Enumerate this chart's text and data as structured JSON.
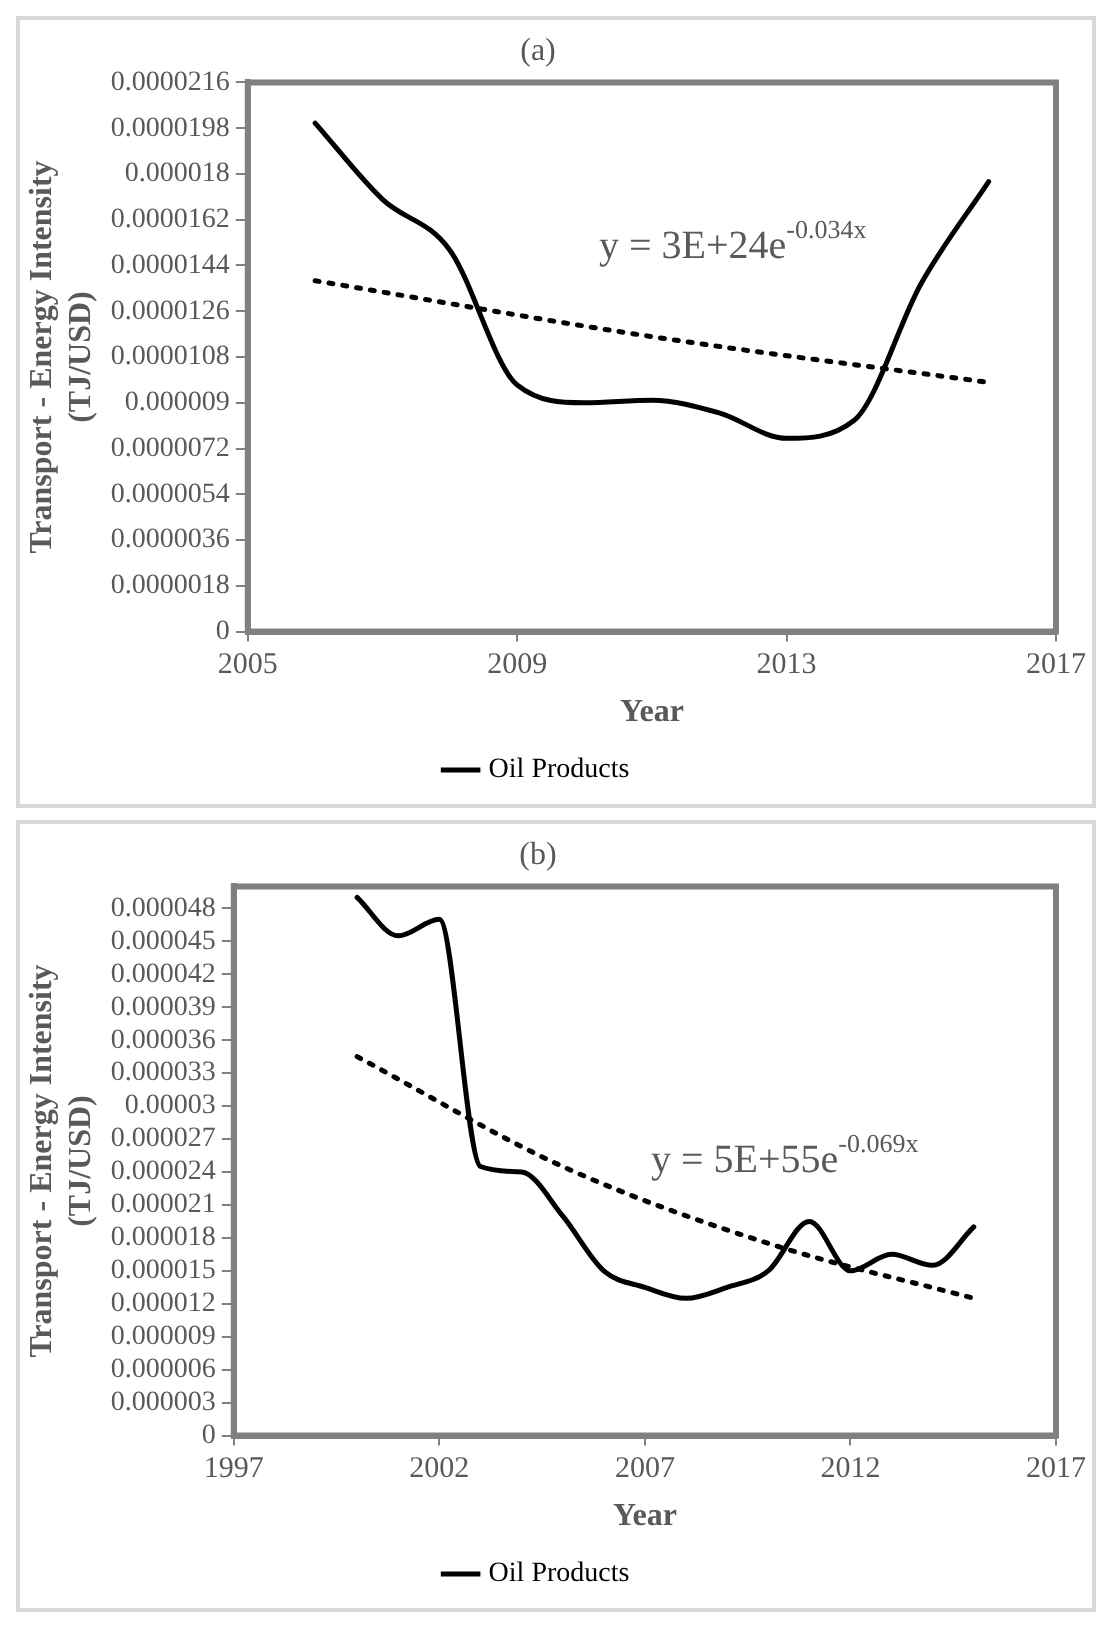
{
  "chart_data": [
    {
      "type": "line",
      "title": "(a)",
      "xlabel": "Year",
      "ylabel": "Transport - Energy Intensity (TJ/USD)",
      "marker": "none",
      "legend": "bottom",
      "xlim": [
        2005,
        2017
      ],
      "xticks": [
        2005,
        2009,
        2013,
        2017
      ],
      "ylim": [
        0,
        2.16e-05
      ],
      "yticks": [
        0,
        {
          "value": 1.8e-06,
          "label": "0.0000018"
        },
        {
          "value": 3.6e-06,
          "label": "0.0000036"
        },
        {
          "value": 5.4e-06,
          "label": "0.0000054"
        },
        {
          "value": 7.2e-06,
          "label": "0.0000072"
        },
        {
          "value": 9e-06,
          "label": "0.000009"
        },
        {
          "value": 1.08e-05,
          "label": "0.0000108"
        },
        {
          "value": 1.26e-05,
          "label": "0.0000126"
        },
        {
          "value": 1.44e-05,
          "label": "0.0000144"
        },
        {
          "value": 1.62e-05,
          "label": "0.0000162"
        },
        {
          "value": 1.8e-05,
          "label": "0.000018"
        },
        {
          "value": 1.98e-05,
          "label": "0.0000198"
        },
        {
          "value": 2.16e-05,
          "label": "0.0000216"
        }
      ],
      "series": [
        {
          "name": "Oil Products",
          "color": "#000000",
          "line_style": "solid",
          "x": [
            2006,
            2007,
            2008,
            2009,
            2010,
            2011,
            2012,
            2013,
            2014,
            2015,
            2016
          ],
          "values": [
            2e-05,
            1.7e-05,
            1.5e-05,
            9.7e-06,
            9e-06,
            9.1e-06,
            8.6e-06,
            7.6e-06,
            8.3e-06,
            1.37e-05,
            1.77e-05
          ]
        },
        {
          "type": "line",
          "color": "#000000",
          "line_style": "dotted",
          "x": [
            2006,
            2011,
            2016
          ],
          "values": [
            1.38e-05,
            1.16e-05,
            9.8e-06
          ]
        }
      ],
      "annotations": [
        "y = 3E+24e$^{-0.034x}$"
      ]
    },
    {
      "type": "line",
      "title": "(b)",
      "xlabel": "Year",
      "ylabel": "Transport - Energy Intensity (TJ/USD)",
      "marker": "none",
      "legend": "bottom",
      "xlim": [
        1997,
        2017
      ],
      "xticks": [
        1997,
        2002,
        2007,
        2012,
        2017
      ],
      "ylim": [
        0,
        5e-05
      ],
      "yticks": [
        0,
        {
          "value": 3e-06,
          "label": "0.000003"
        },
        {
          "value": 6e-06,
          "label": "0.000006"
        },
        {
          "value": 9e-06,
          "label": "0.000009"
        },
        {
          "value": 1.2e-05,
          "label": "0.000012"
        },
        {
          "value": 1.5e-05,
          "label": "0.000015"
        },
        {
          "value": 1.8e-05,
          "label": "0.000018"
        },
        {
          "value": 2.1e-05,
          "label": "0.000021"
        },
        {
          "value": 2.4e-05,
          "label": "0.000024"
        },
        {
          "value": 2.7e-05,
          "label": "0.000027"
        },
        {
          "value": 3e-05,
          "label": "0.00003"
        },
        {
          "value": 3.3e-05,
          "label": "0.000033"
        },
        {
          "value": 3.6e-05,
          "label": "0.000036"
        },
        {
          "value": 3.9e-05,
          "label": "0.000039"
        },
        {
          "value": 4.2e-05,
          "label": "0.000042"
        },
        {
          "value": 4.5e-05,
          "label": "0.000045"
        },
        {
          "value": 4.8e-05,
          "label": "0.000048"
        }
      ],
      "series": [
        {
          "name": "Oil Products",
          "color": "#000000",
          "line_style": "solid",
          "x": [
            2000,
            2001,
            2002,
            2003,
            2004,
            2005,
            2006,
            2007,
            2008,
            2009,
            2010,
            2011,
            2012,
            2013,
            2014,
            2015
          ],
          "values": [
            4.9e-05,
            4.55e-05,
            4.7e-05,
            2.45e-05,
            2.4e-05,
            2e-05,
            1.5e-05,
            1.35e-05,
            1.25e-05,
            1.35e-05,
            1.5e-05,
            1.95e-05,
            1.5e-05,
            1.65e-05,
            1.55e-05,
            1.9e-05
          ]
        },
        {
          "type": "line",
          "color": "#000000",
          "line_style": "dotted",
          "x": [
            2000,
            2005,
            2010,
            2015
          ],
          "values": [
            3.45e-05,
            2.45e-05,
            1.75e-05,
            1.25e-05
          ]
        }
      ],
      "annotations": [
        "y = 5E+55e$^{-0.069x}$"
      ]
    }
  ]
}
